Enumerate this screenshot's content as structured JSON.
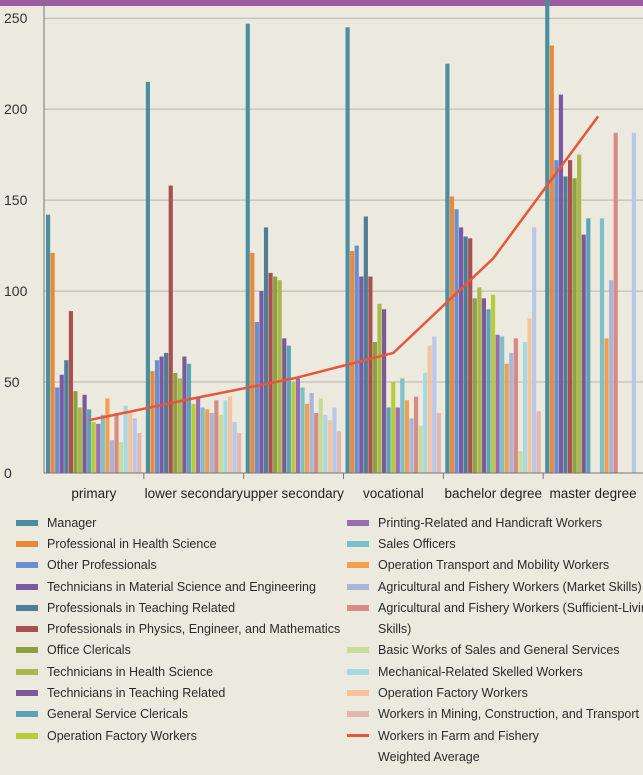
{
  "colors": {
    "background": "#ece9df",
    "grid": "#b9b6ad",
    "top_band": "#9b5ea3",
    "weighted_line": "#e8563a"
  },
  "chart_data": {
    "type": "bar",
    "title": "",
    "xlabel": "",
    "ylabel": "",
    "ylim": [
      0,
      260
    ],
    "yticks": [
      0,
      50,
      100,
      150,
      200,
      250
    ],
    "grid": true,
    "legend_position": "bottom",
    "categories": [
      "primary",
      "lower secondary",
      "upper secondary",
      "vocational",
      "bachelor degree",
      "master degree"
    ],
    "series": [
      {
        "name": "Manager",
        "color": "#4a8ea0",
        "values": [
          142,
          215,
          247,
          245,
          225,
          260
        ]
      },
      {
        "name": "Professional in Health Science",
        "color": "#e8893c",
        "values": [
          121,
          56,
          121,
          122,
          152,
          235
        ]
      },
      {
        "name": "Other Professionals",
        "color": "#6a8fcf",
        "values": [
          47,
          62,
          83,
          125,
          145,
          172
        ]
      },
      {
        "name": "Technicians in Material Science and Engineering",
        "color": "#7a5aa6",
        "values": [
          54,
          64,
          100,
          108,
          135,
          208
        ]
      },
      {
        "name": "Professionals in Teaching Related",
        "color": "#4f7d94",
        "values": [
          62,
          66,
          135,
          141,
          130,
          163
        ]
      },
      {
        "name": "Professionals in Physics, Engineer, and Mathematics",
        "color": "#a85050",
        "values": [
          89,
          158,
          110,
          108,
          129,
          172
        ]
      },
      {
        "name": "Office Clericals",
        "color": "#8fa040",
        "values": [
          45,
          55,
          108,
          72,
          96,
          162
        ]
      },
      {
        "name": "Technicians in Health Science",
        "color": "#a8b84a",
        "values": [
          36,
          52,
          106,
          93,
          102,
          175
        ]
      },
      {
        "name": "Technicians in Teaching Related",
        "color": "#7c5a98",
        "values": [
          43,
          64,
          74,
          90,
          96,
          131
        ]
      },
      {
        "name": "General Service Clericals",
        "color": "#5aa3b8",
        "values": [
          35,
          60,
          70,
          36,
          90,
          140
        ]
      },
      {
        "name": "Operation Factory Workers",
        "color": "#b8cc3a",
        "values": [
          28,
          38,
          50,
          50,
          98,
          0
        ]
      },
      {
        "name": "Printing-Related and Handicraft Workers",
        "color": "#9c6cb0",
        "values": [
          27,
          41,
          52,
          36,
          76,
          0
        ]
      },
      {
        "name": "Sales Officers",
        "color": "#7cc0c8",
        "values": [
          32,
          36,
          47,
          52,
          75,
          140
        ]
      },
      {
        "name": "Operation Transport and Mobility Workers",
        "color": "#f0a050",
        "values": [
          41,
          35,
          38,
          40,
          60,
          74
        ]
      },
      {
        "name": "Agricultural and Fishery Workers (Market Skills)",
        "color": "#a8b4d8",
        "values": [
          18,
          33,
          44,
          30,
          66,
          106
        ]
      },
      {
        "name": "Agricultural and Fishery Workers (Sufficient-Living Skills)",
        "color": "#d88a84",
        "values": [
          33,
          40,
          33,
          42,
          74,
          187
        ]
      },
      {
        "name": "Basic Works of Sales and General Services",
        "color": "#c8dc9a",
        "values": [
          17,
          32,
          41,
          26,
          12,
          0
        ]
      },
      {
        "name": "Mechanical-Related Skelled Workers",
        "color": "#a8d8e0",
        "values": [
          37,
          40,
          32,
          55,
          72,
          0
        ]
      },
      {
        "name": "Operation Factory Workers",
        "color": "#f4c4a0",
        "values": [
          34,
          42,
          29,
          70,
          85,
          0
        ]
      },
      {
        "name": "Workers in Mining, Construction, and Transport",
        "color": "#b8c8e8",
        "values": [
          30,
          28,
          36,
          75,
          135,
          187
        ]
      },
      {
        "name": "Workers in Farm and Fishery",
        "color": "#e0b8b0",
        "values": [
          22,
          22,
          23,
          33,
          34,
          0
        ]
      }
    ],
    "weighted_average": {
      "name": "Weighted Average",
      "values": [
        29,
        41,
        52,
        66,
        118,
        196
      ]
    }
  },
  "legend": {
    "left": [
      {
        "label": "Manager",
        "color": "#4a8ea0"
      },
      {
        "label": "Professional in Health Science",
        "color": "#e8893c"
      },
      {
        "label": "Other Professionals",
        "color": "#6a8fcf"
      },
      {
        "label": "Technicians in Material Science and Engineering",
        "color": "#7a5aa6"
      },
      {
        "label": "Professionals in Teaching Related",
        "color": "#4f7d94"
      },
      {
        "label": "Professionals in Physics, Engineer, and Mathematics",
        "color": "#a85050"
      },
      {
        "label": "Office Clericals",
        "color": "#8fa040"
      },
      {
        "label": "Technicians in Health Science",
        "color": "#a8b84a"
      },
      {
        "label": "Technicians in Teaching Related",
        "color": "#7c5a98"
      },
      {
        "label": "General Service Clericals",
        "color": "#5aa3b8"
      },
      {
        "label": "Operation Factory Workers",
        "color": "#b8cc3a"
      }
    ],
    "right": [
      {
        "label": "Printing-Related and Handicraft Workers",
        "color": "#9c6cb0"
      },
      {
        "label": "Sales Officers",
        "color": "#7cc0c8"
      },
      {
        "label": "Operation Transport and Mobility Workers",
        "color": "#f0a050"
      },
      {
        "label": "Agricultural and Fishery Workers (Market Skills)",
        "color": "#a8b4d8"
      },
      {
        "label": "Agricultural and Fishery Workers (Sufficient-Living",
        "color": "#d88a84"
      },
      {
        "label": "Skills)",
        "color": ""
      },
      {
        "label": "Basic Works of Sales and General Services",
        "color": "#c8dc9a"
      },
      {
        "label": "Mechanical-Related Skelled Workers",
        "color": "#a8d8e0"
      },
      {
        "label": "Operation Factory Workers",
        "color": "#f4c4a0"
      },
      {
        "label": "Workers in Mining, Construction, and Transport",
        "color": "#e0b8b0"
      },
      {
        "label": "Workers in Farm and Fishery",
        "color": "#e8563a",
        "line": true
      },
      {
        "label": "Weighted Average",
        "color": ""
      }
    ]
  }
}
